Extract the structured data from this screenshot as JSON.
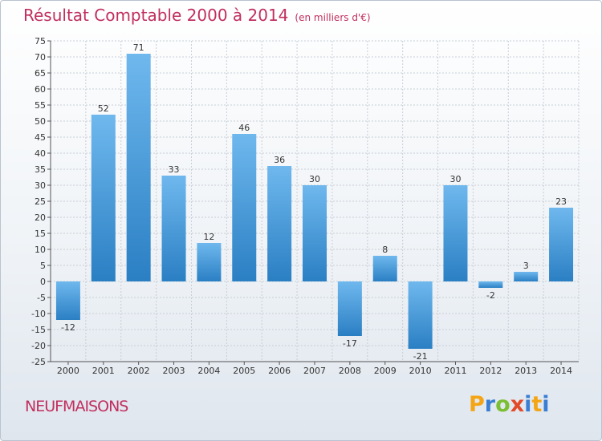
{
  "header": {
    "title": "Résultat Comptable 2000 à 2014",
    "subtitle": "(en milliers d'€)"
  },
  "footer": {
    "commune": "NEUFMAISONS",
    "logo_letters": [
      "P",
      "r",
      "o",
      "x",
      "i",
      "t",
      "i"
    ]
  },
  "colors": {
    "title": "#c12f5e",
    "bar_light": "#6fb8ee",
    "bar_dark": "#2a7fc3",
    "grid": "#c8ced6"
  },
  "chart_data": {
    "type": "bar",
    "title": "Résultat Comptable 2000 à 2014",
    "subtitle": "(en milliers d'€)",
    "categories": [
      "2000",
      "2001",
      "2002",
      "2003",
      "2004",
      "2005",
      "2006",
      "2007",
      "2008",
      "2009",
      "2010",
      "2011",
      "2012",
      "2013",
      "2014"
    ],
    "values": [
      -12,
      52,
      71,
      33,
      12,
      46,
      36,
      30,
      -17,
      8,
      -21,
      30,
      -2,
      3,
      23
    ],
    "data_labels": [
      "-12",
      "52",
      "71",
      "33",
      "12",
      "46",
      "36",
      "30",
      "-17",
      "8",
      "-21",
      "30",
      "-2",
      "3",
      "23"
    ],
    "yticks": [
      -25,
      -20,
      -15,
      -10,
      -5,
      0,
      5,
      10,
      15,
      20,
      25,
      30,
      35,
      40,
      45,
      50,
      55,
      60,
      65,
      70,
      75
    ],
    "ylim": [
      -25,
      75
    ],
    "xlabel": "",
    "ylabel": "",
    "grid": true,
    "legend": "none"
  }
}
